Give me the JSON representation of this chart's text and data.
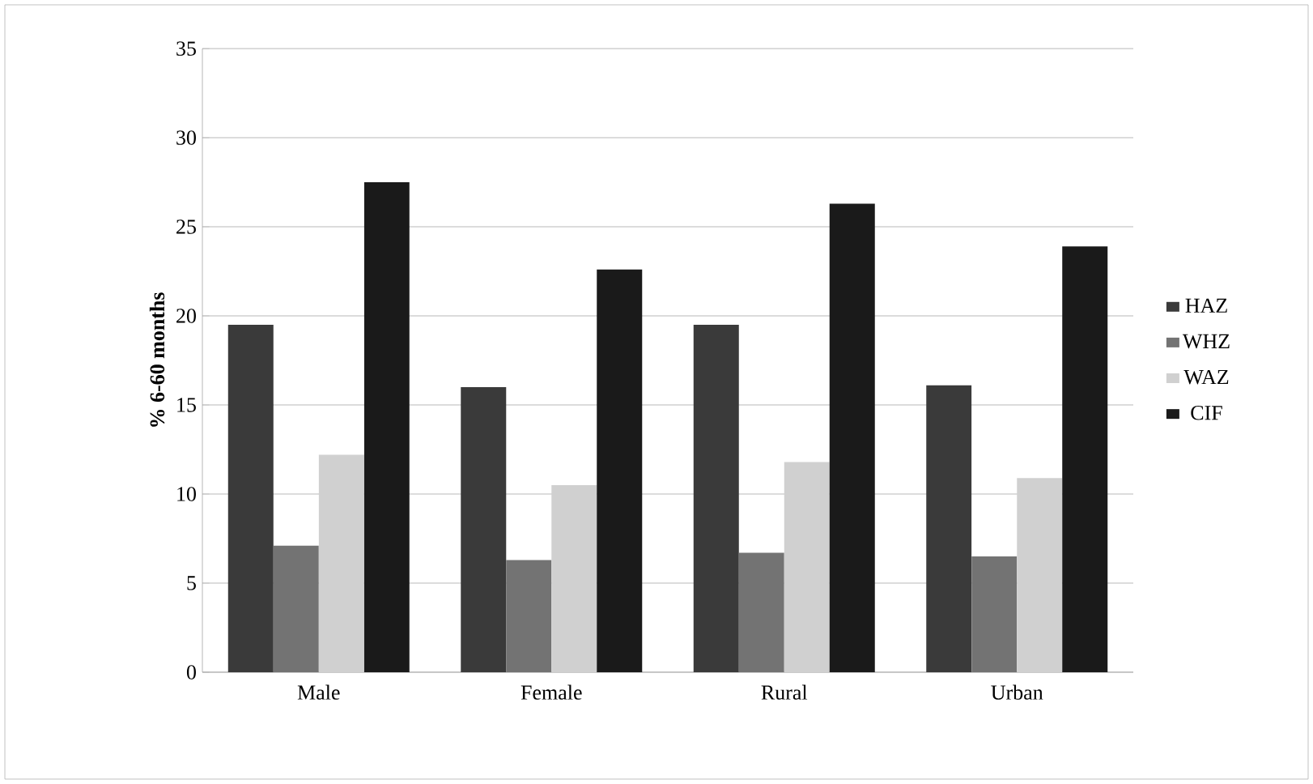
{
  "chart_data": {
    "type": "bar",
    "ylabel": "% 6-60 months",
    "categories": [
      "Male",
      "Female",
      "Rural",
      "Urban"
    ],
    "series": [
      {
        "name": "HAZ",
        "color": "#3a3a3a",
        "values": [
          19.5,
          16.0,
          19.5,
          16.1
        ]
      },
      {
        "name": "WHZ",
        "color": "#737373",
        "values": [
          7.1,
          6.3,
          6.7,
          6.5
        ]
      },
      {
        "name": "WAZ",
        "color": "#d0d0d0",
        "values": [
          12.2,
          10.5,
          11.8,
          10.9
        ]
      },
      {
        "name": "CIF",
        "color": "#1a1a1a",
        "values": [
          27.5,
          22.6,
          26.3,
          23.9
        ]
      }
    ],
    "ylim": [
      0,
      35
    ],
    "yticks": [
      0,
      5,
      10,
      15,
      20,
      25,
      30,
      35
    ],
    "grid": "y",
    "legend": "right"
  }
}
